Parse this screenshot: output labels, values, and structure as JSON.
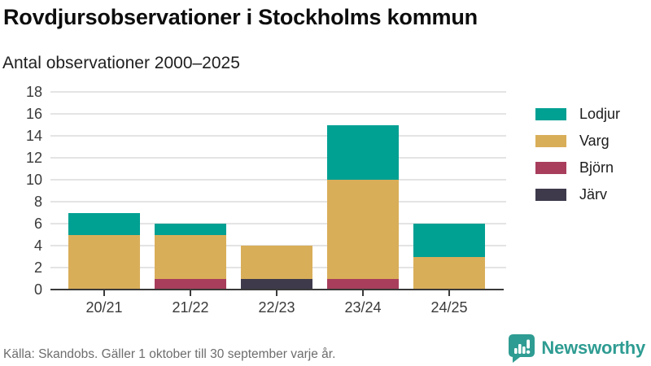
{
  "header": {
    "title": "Rovdjursobservationer i Stockholms kommun",
    "subtitle": "Antal observationer 2000–2025"
  },
  "chart_data": {
    "type": "bar",
    "stacked": true,
    "categories": [
      "20/21",
      "21/22",
      "22/23",
      "23/24",
      "24/25"
    ],
    "series": [
      {
        "name": "Lodjur",
        "color": "#00a093",
        "values": [
          2,
          1,
          0,
          5,
          3
        ]
      },
      {
        "name": "Varg",
        "color": "#d9ae59",
        "values": [
          5,
          4,
          3,
          9,
          3
        ]
      },
      {
        "name": "Björn",
        "color": "#a83e5c",
        "values": [
          0,
          1,
          0,
          1,
          0
        ]
      },
      {
        "name": "Järv",
        "color": "#3e3a4c",
        "values": [
          0,
          0,
          1,
          0,
          0
        ]
      }
    ],
    "totals": [
      7,
      6,
      4,
      15,
      6
    ],
    "title": "Rovdjursobservationer i Stockholms kommun",
    "subtitle": "Antal observationer 2000–2025",
    "xlabel": "",
    "ylabel": "Antal observationer",
    "ylim": [
      0,
      18
    ],
    "ytick_step": 2,
    "grid": true,
    "legend_position": "right",
    "stack_order_bottom_to_top": [
      "Järv",
      "Björn",
      "Varg",
      "Lodjur"
    ]
  },
  "footer": {
    "source": "Källa: Skandobs. Gäller 1 oktober till 30 september varje år.",
    "brand": "Newsworthy"
  },
  "colors": {
    "lodjur_teal": "#00a093",
    "varg_gold": "#d9ae59",
    "bjorn_maroon": "#a83e5c",
    "jarv_dark": "#3e3a4c",
    "gridline": "#e4e4e4",
    "axis": "#3a3a3a",
    "brand_teal": "#2e9c92",
    "source_gray": "#6d6d6d"
  }
}
